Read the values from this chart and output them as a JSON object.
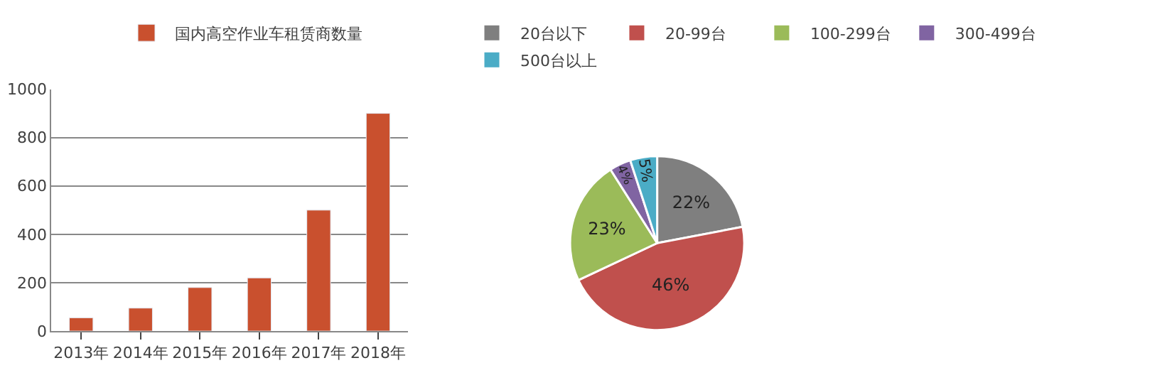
{
  "chart_data": [
    {
      "type": "bar",
      "categories": [
        "2013年",
        "2014年",
        "2015年",
        "2016年",
        "2017年",
        "2018年"
      ],
      "series": [
        {
          "name": "国内高空作业车租赁商数量",
          "color": "#c9502e",
          "values": [
            55,
            95,
            180,
            220,
            500,
            900
          ]
        }
      ],
      "ylim": [
        0,
        1000
      ],
      "yticks": [
        0,
        200,
        400,
        600,
        800,
        1000
      ],
      "grid": "y",
      "legend": "top"
    },
    {
      "type": "pie",
      "categories": [
        "20台以下",
        "20-99台",
        "100-299台",
        "300-499台",
        "500台以上"
      ],
      "values": [
        22,
        46,
        23,
        4,
        5
      ],
      "colors": [
        "#7f7f7f",
        "#c0504d",
        "#9bbb59",
        "#8064a2",
        "#4bacc6"
      ],
      "value_labels": [
        "22%",
        "46%",
        "23%",
        "4%",
        "5%"
      ],
      "legend": "top"
    }
  ]
}
